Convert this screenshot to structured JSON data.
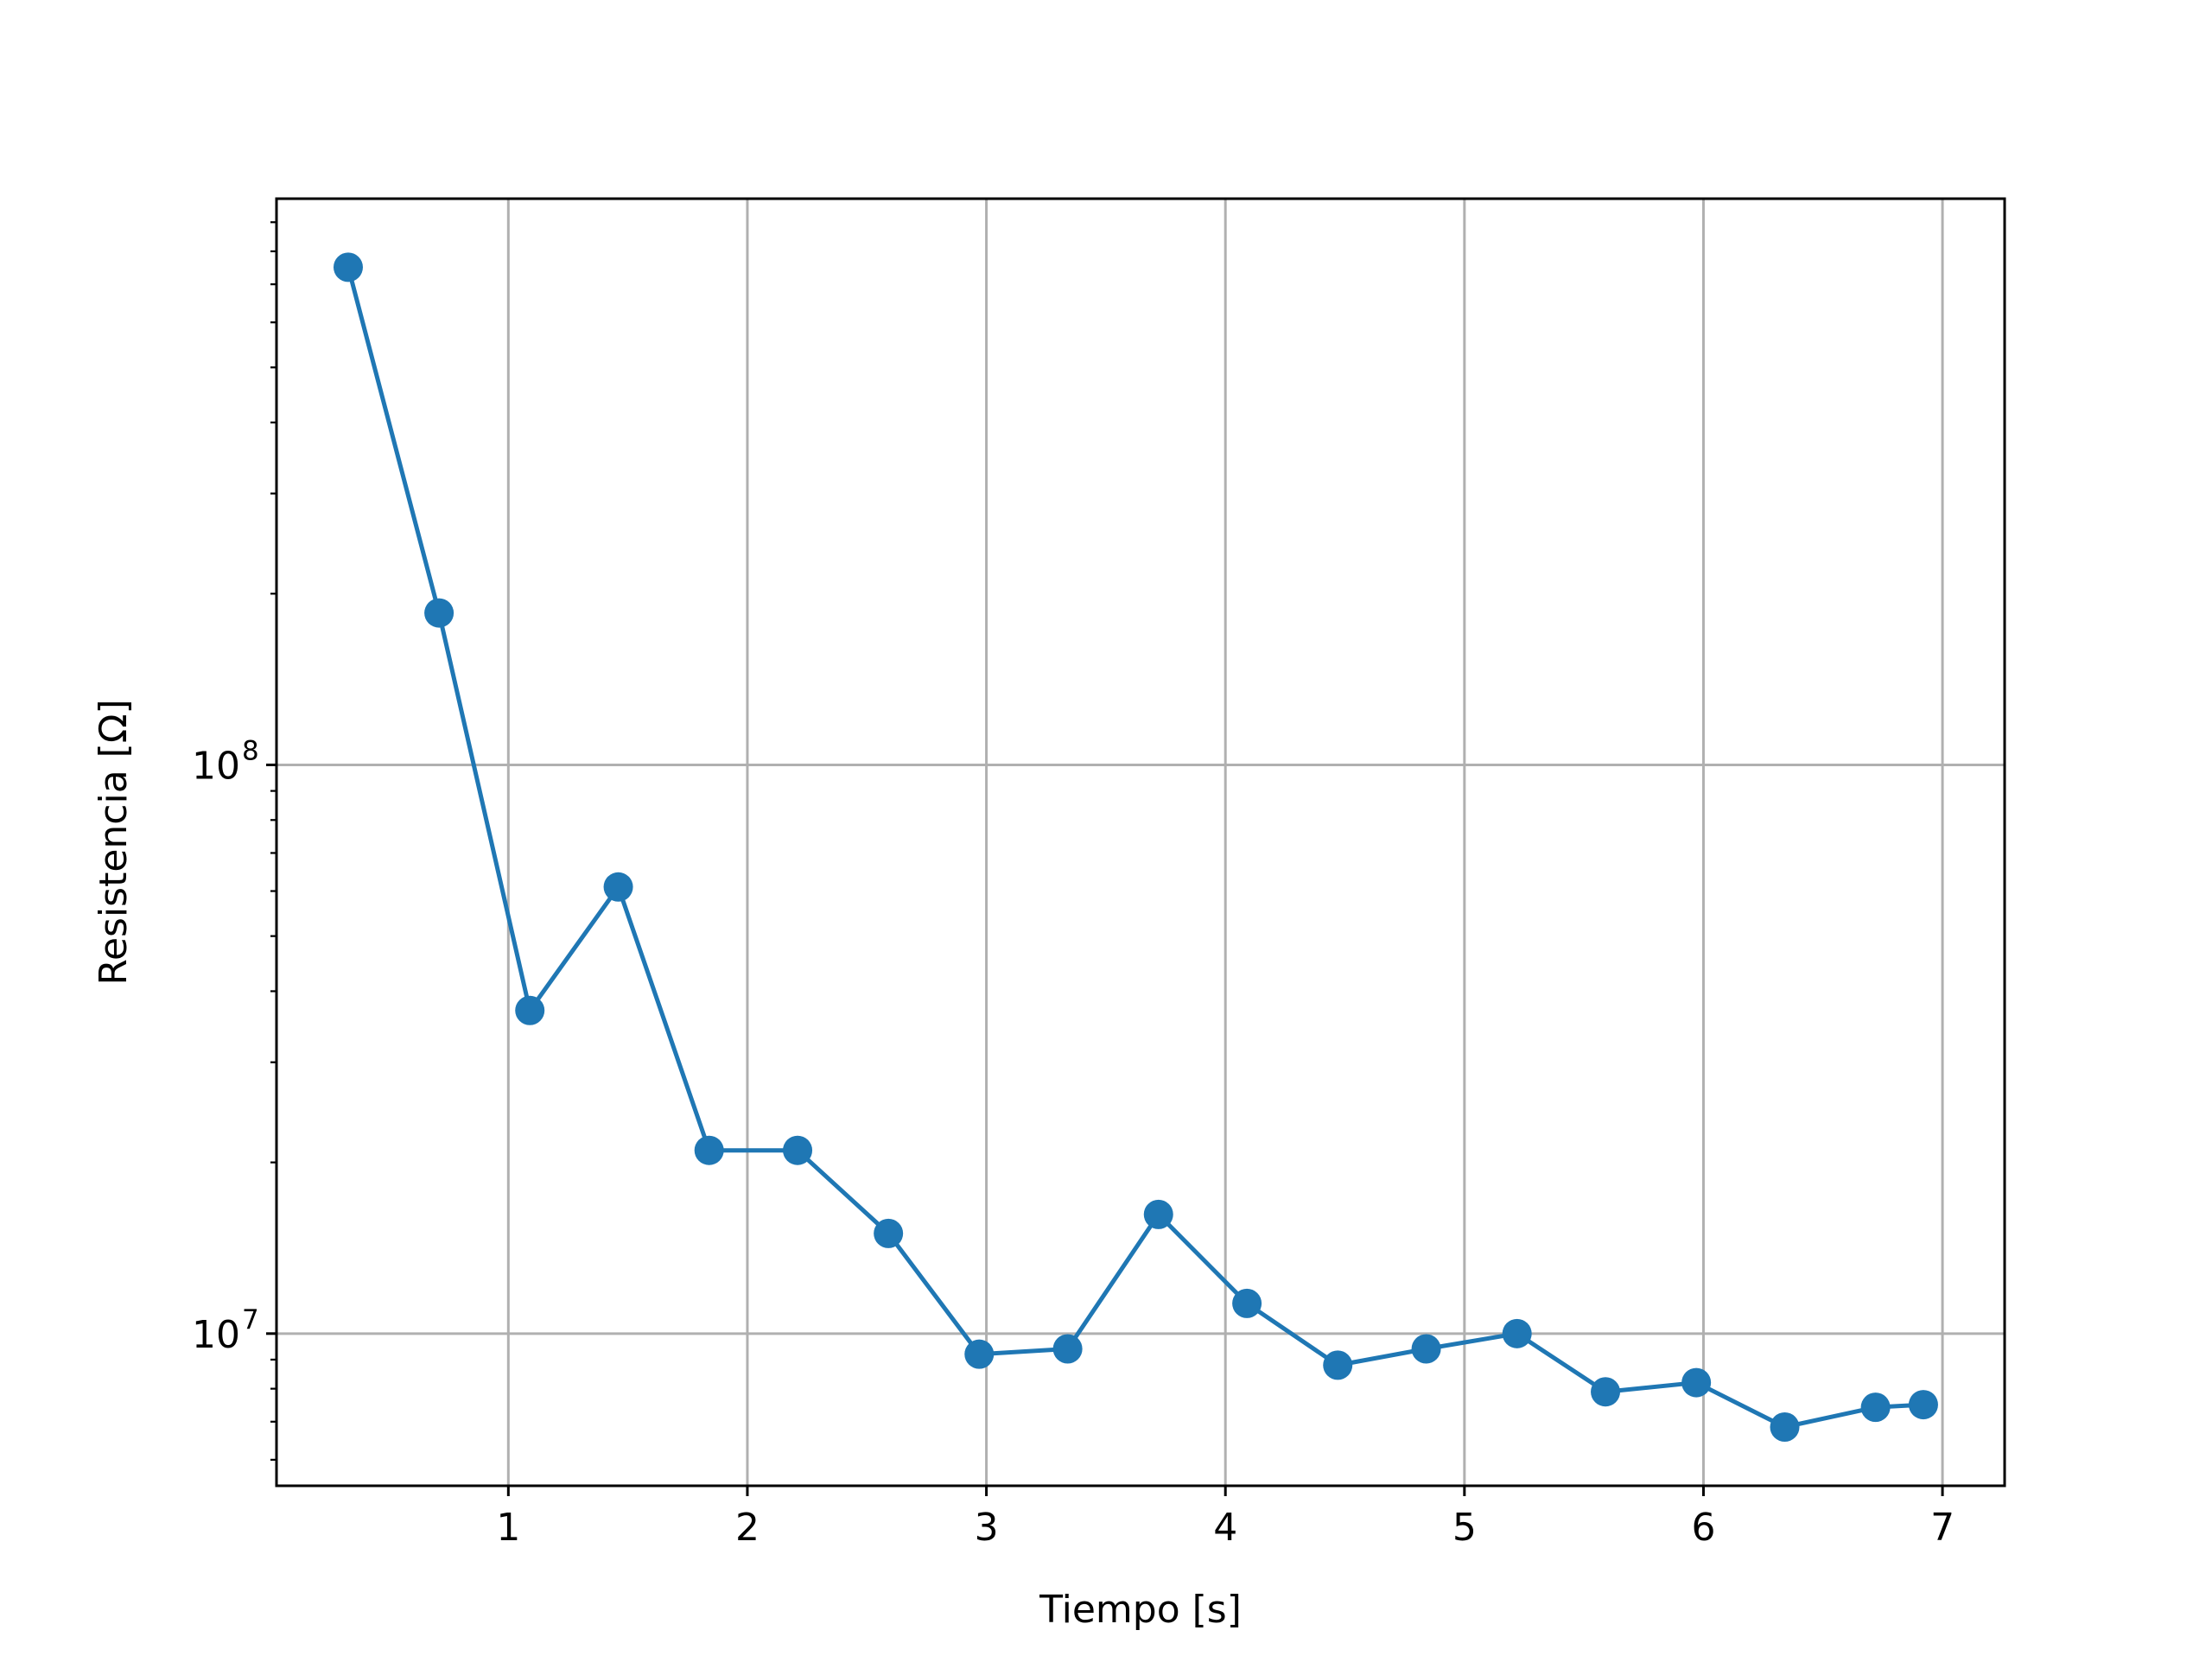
{
  "chart_data": {
    "type": "line",
    "title": "",
    "xlabel": "Tiempo [s]",
    "ylabel": "Resistencia [Ω]",
    "yscale": "log",
    "xlim": [
      0.03,
      7.26
    ],
    "ylim": [
      5400000.0,
      990000000.0
    ],
    "x_ticks": [
      1,
      2,
      3,
      4,
      5,
      6,
      7
    ],
    "y_major_ticks": [
      {
        "value": 10000000,
        "base": "10",
        "exp": "7"
      },
      {
        "value": 100000000,
        "base": "10",
        "exp": "8"
      }
    ],
    "y_minor_ticks": [
      6000000,
      7000000,
      8000000,
      9000000,
      20000000,
      30000000,
      40000000,
      50000000,
      60000000,
      70000000,
      80000000,
      90000000,
      200000000,
      300000000,
      400000000,
      500000000,
      600000000,
      700000000,
      800000000,
      900000000
    ],
    "grid": true,
    "series": [
      {
        "name": "Resistencia",
        "color": "#1f77b4",
        "marker": "circle",
        "x": [
          0.33,
          0.71,
          1.09,
          1.46,
          1.84,
          2.21,
          2.59,
          2.97,
          3.34,
          3.72,
          4.09,
          4.47,
          4.84,
          5.22,
          5.59,
          5.97,
          6.34,
          6.72,
          6.92
        ],
        "y": [
          750000000,
          185000000,
          37000000,
          61000000,
          21000000,
          21000000,
          15000000,
          9200000,
          9400000,
          16200000,
          11300000,
          8800000,
          9400000,
          10000000,
          7900000,
          8200000,
          6850000,
          7420000,
          7500000
        ]
      }
    ]
  }
}
